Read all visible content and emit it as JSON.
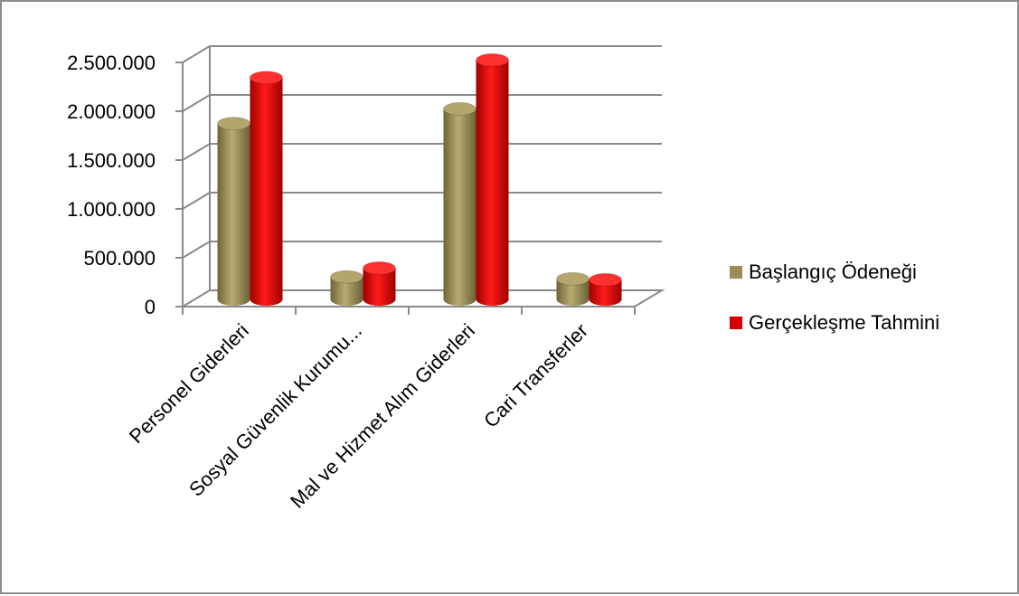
{
  "chart_data": {
    "type": "bar",
    "categories": [
      "Personel Giderleri",
      "Sosyal Güvenlik Kurumu...",
      "Mal ve Hizmet Alım Giderleri",
      "Cari Transferler"
    ],
    "series": [
      {
        "name": "Başlangıç Ödeneği",
        "values": [
          1800000,
          230000,
          1950000,
          210000
        ],
        "color": "#9b8d55"
      },
      {
        "name": "Gerçekleşme Tahmini",
        "values": [
          2270000,
          320000,
          2450000,
          200000
        ],
        "color": "#d40000"
      }
    ],
    "yticks": [
      "0",
      "500.000",
      "1.000.000",
      "1.500.000",
      "2.000.000",
      "2.500.000"
    ],
    "ylim": [
      0,
      2500000
    ],
    "grid": true,
    "legend_position": "right",
    "style": "3d-cylinder"
  }
}
